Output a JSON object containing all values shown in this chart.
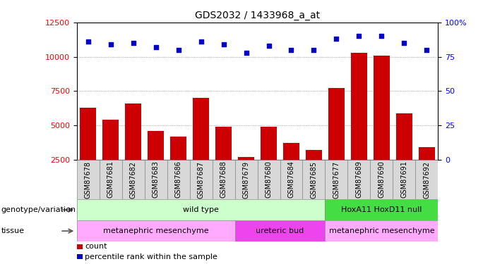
{
  "title": "GDS2032 / 1433968_a_at",
  "samples": [
    "GSM87678",
    "GSM87681",
    "GSM87682",
    "GSM87683",
    "GSM87686",
    "GSM87687",
    "GSM87688",
    "GSM87679",
    "GSM87680",
    "GSM87684",
    "GSM87685",
    "GSM87677",
    "GSM87689",
    "GSM87690",
    "GSM87691",
    "GSM87692"
  ],
  "counts": [
    6300,
    5400,
    6600,
    4600,
    4200,
    7000,
    4900,
    2700,
    4900,
    3700,
    3200,
    7700,
    10300,
    10100,
    5900,
    3400
  ],
  "percentile": [
    86,
    84,
    85,
    82,
    80,
    86,
    84,
    78,
    83,
    80,
    80,
    88,
    90,
    90,
    85,
    80
  ],
  "ylim_left": [
    2500,
    12500
  ],
  "ylim_right": [
    0,
    100
  ],
  "yticks_left": [
    2500,
    5000,
    7500,
    10000,
    12500
  ],
  "yticks_right": [
    0,
    25,
    50,
    75,
    100
  ],
  "bar_color": "#cc0000",
  "dot_color": "#0000cc",
  "grid_color": "#888888",
  "genotype_groups": [
    {
      "label": "wild type",
      "start": 0,
      "end": 11,
      "color": "#ccffcc"
    },
    {
      "label": "HoxA11 HoxD11 null",
      "start": 11,
      "end": 16,
      "color": "#44dd44"
    }
  ],
  "tissue_groups": [
    {
      "label": "metanephric mesenchyme",
      "start": 0,
      "end": 7,
      "color": "#ffaaff"
    },
    {
      "label": "ureteric bud",
      "start": 7,
      "end": 11,
      "color": "#ee44ee"
    },
    {
      "label": "metanephric mesenchyme",
      "start": 11,
      "end": 16,
      "color": "#ffaaff"
    }
  ],
  "left_label_geno": "genotype/variation",
  "left_label_tissue": "tissue",
  "legend_items": [
    "count",
    "percentile rank within the sample"
  ],
  "legend_colors": [
    "#cc0000",
    "#0000cc"
  ],
  "title_fontsize": 10,
  "tick_fontsize": 7,
  "label_fontsize": 8,
  "annot_fontsize": 8
}
